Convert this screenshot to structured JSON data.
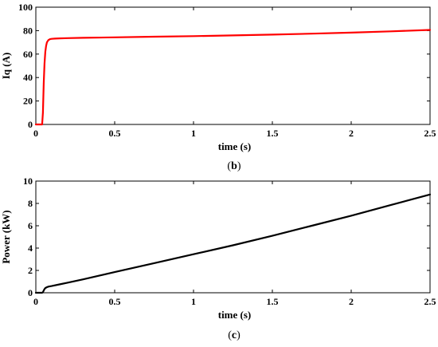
{
  "chart_data": [
    {
      "type": "line",
      "panel_label_prefix": "(",
      "panel_label_letter": "b",
      "panel_label_suffix": ")",
      "xlabel": "time (s)",
      "ylabel": "Iq (A)",
      "xlim": [
        0,
        2.5
      ],
      "ylim": [
        0,
        100
      ],
      "xticks": [
        "0",
        "0.5",
        "1",
        "1.5",
        "2",
        "2.5"
      ],
      "yticks": [
        "0",
        "20",
        "40",
        "60",
        "80",
        "100"
      ],
      "grid": false,
      "line_color": "#ff0000",
      "series": [
        {
          "x": [
            0,
            0.04,
            0.045,
            0.05,
            0.055,
            0.06,
            0.065,
            0.07,
            0.08,
            0.09,
            0.1,
            0.12,
            0.15,
            0.2,
            0.3,
            0.5,
            0.75,
            1.0,
            1.25,
            1.5,
            1.75,
            2.0,
            2.25,
            2.5
          ],
          "values": [
            0,
            0,
            10,
            35,
            52,
            62,
            67,
            70,
            72,
            72.7,
            73,
            73.2,
            73.4,
            73.6,
            73.9,
            74.3,
            74.8,
            75.3,
            75.9,
            76.6,
            77.4,
            78.3,
            79.4,
            80.6
          ]
        }
      ]
    },
    {
      "type": "line",
      "panel_label_prefix": "(",
      "panel_label_letter": "c",
      "panel_label_suffix": ")",
      "xlabel": "time (s)",
      "ylabel": "Power (kW)",
      "xlim": [
        0,
        2.5
      ],
      "ylim": [
        0,
        10
      ],
      "xticks": [
        "0",
        "0.5",
        "1",
        "1.5",
        "2",
        "2.5"
      ],
      "yticks": [
        "0",
        "2",
        "4",
        "6",
        "8",
        "10"
      ],
      "grid": false,
      "line_color": "#000000",
      "series": [
        {
          "x": [
            0,
            0.04,
            0.045,
            0.05,
            0.055,
            0.06,
            0.07,
            0.08,
            0.1,
            0.15,
            0.2,
            0.3,
            0.5,
            0.75,
            1.0,
            1.25,
            1.5,
            1.75,
            2.0,
            2.25,
            2.5
          ],
          "values": [
            0,
            0,
            0.05,
            0.2,
            0.33,
            0.42,
            0.5,
            0.55,
            0.6,
            0.75,
            0.9,
            1.2,
            1.85,
            2.65,
            3.45,
            4.25,
            5.1,
            6.0,
            6.9,
            7.85,
            8.8
          ]
        }
      ]
    }
  ]
}
